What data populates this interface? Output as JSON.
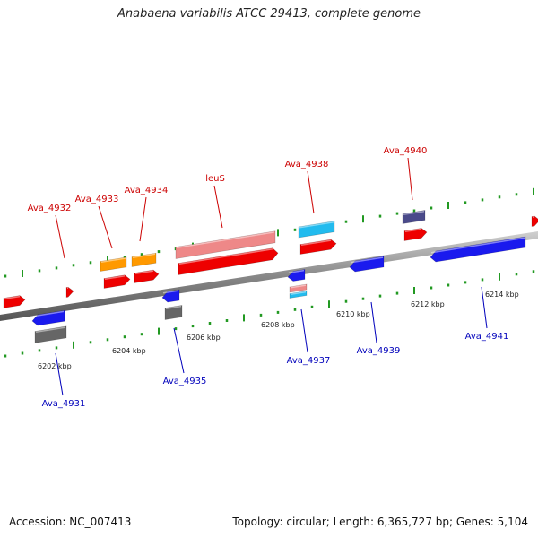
{
  "title": "Anabaena variabilis ATCC 29413, complete genome",
  "footer": {
    "accession": "Accession: NC_007413",
    "summary": "Topology: circular; Length: 6,365,727 bp; Genes: 5,104"
  },
  "colors": {
    "backbone": "#888888",
    "tick": "#229922",
    "label_top": "#cc0000",
    "label_bottom": "#0000bb",
    "red": "#ee0000",
    "orange": "#ff9900",
    "pink": "#ee8888",
    "cyan": "#22bbee",
    "navy": "#4a4a8a",
    "blue": "#1a1aee",
    "gray": "#666666"
  },
  "scale_labels": [
    "6202 kbp",
    "6204 kbp",
    "6206 kbp",
    "6208 kbp",
    "6210 kbp",
    "6212 kbp",
    "6214 kbp"
  ],
  "top_genes": [
    {
      "name": "Ava_4932"
    },
    {
      "name": "Ava_4933"
    },
    {
      "name": "Ava_4934"
    },
    {
      "name": "leuS"
    },
    {
      "name": "Ava_4938"
    },
    {
      "name": "Ava_4940"
    }
  ],
  "bottom_genes": [
    {
      "name": "Ava_4931"
    },
    {
      "name": "Ava_4935"
    },
    {
      "name": "Ava_4937"
    },
    {
      "name": "Ava_4939"
    },
    {
      "name": "Ava_4941"
    }
  ]
}
